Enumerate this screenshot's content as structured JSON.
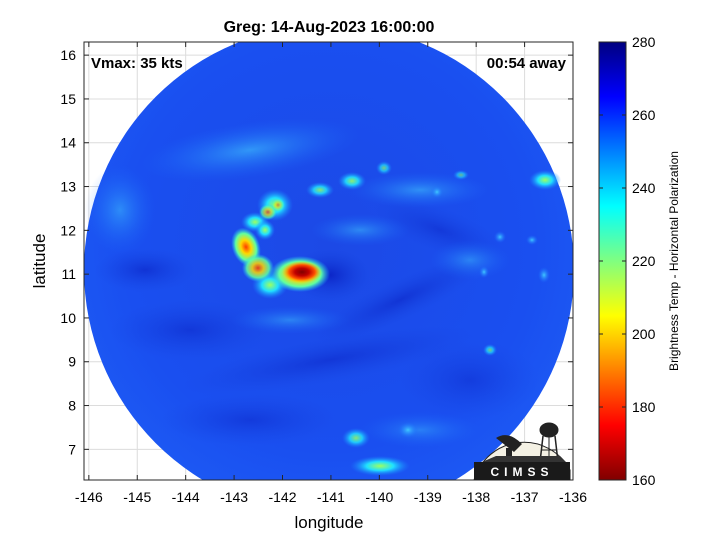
{
  "title": "Greg: 14-Aug-2023 16:00:00",
  "annotations": {
    "vmax": "Vmax: 35 kts",
    "time_away": "00:54 away"
  },
  "axes": {
    "xlabel": "longitude",
    "ylabel": "latitude",
    "xlim": [
      -146.1,
      -136
    ],
    "ylim": [
      6.3,
      16.3
    ],
    "xticks": [
      -146,
      -145,
      -144,
      -143,
      -142,
      -141,
      -140,
      -139,
      -138,
      -137,
      -136
    ],
    "yticks": [
      7,
      8,
      9,
      10,
      11,
      12,
      13,
      14,
      15,
      16
    ],
    "grid": true
  },
  "colorbar": {
    "label": "Brightness Temp - Horizontal Polarization",
    "range": [
      160,
      280
    ],
    "ticks": [
      160,
      180,
      200,
      220,
      240,
      260,
      280
    ],
    "colormap": "jet"
  },
  "storm": {
    "swath_center_lon": -141,
    "swath_center_lat": 11,
    "swath_radius_deg": 4.9
  },
  "logo": {
    "text": "CIMSS"
  }
}
